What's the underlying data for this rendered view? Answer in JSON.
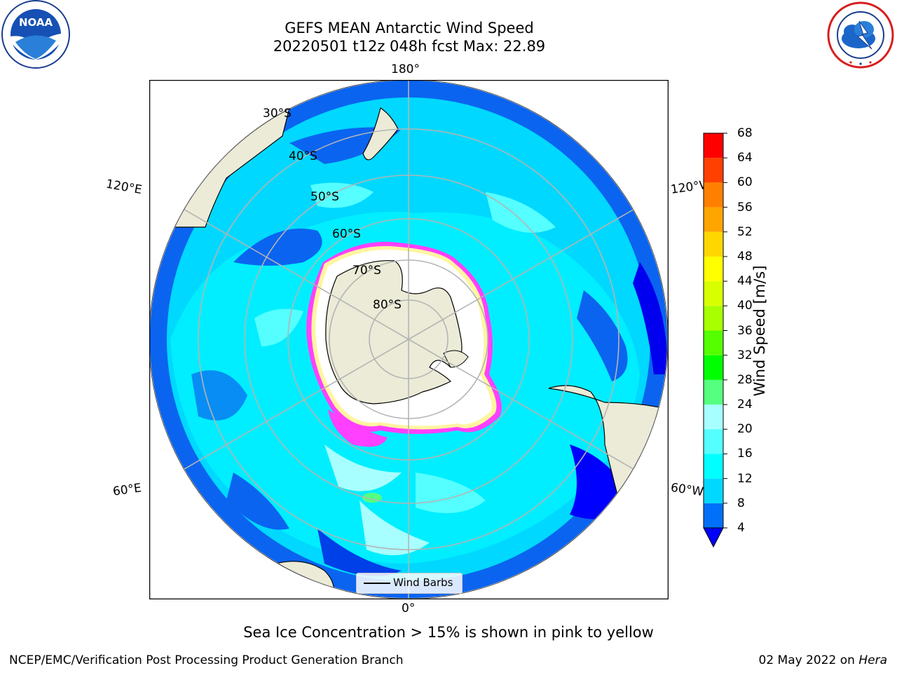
{
  "header": {
    "title": "GEFS MEAN Antarctic Wind Speed",
    "subtitle": "20220501 t12z 048h fcst   Max: 22.89"
  },
  "logos": {
    "left": {
      "icon": "noaa-logo",
      "text": "NOAA"
    },
    "right": {
      "icon": "national-weather-service-logo",
      "text": "NATIONAL WEATHER SERVICE"
    }
  },
  "map": {
    "projection": "south-polar-stereographic",
    "lon_labels": {
      "top": "180°",
      "bottom": "0°",
      "upper_left": "120°E",
      "lower_left": "60°E",
      "upper_right": "120°W",
      "lower_right": "60°W"
    },
    "lat_labels": [
      "30°S",
      "40°S",
      "50°S",
      "60°S",
      "70°S",
      "80°S"
    ],
    "legend_label": "Wind Barbs"
  },
  "colorbar": {
    "title": "Wind Speed [m/s]",
    "ticks": [
      "4",
      "8",
      "12",
      "16",
      "20",
      "24",
      "28",
      "32",
      "36",
      "40",
      "44",
      "48",
      "52",
      "56",
      "60",
      "64",
      "68"
    ],
    "colors": [
      "#0000ff",
      "#0070f8",
      "#00d8ff",
      "#00ffff",
      "#55ffff",
      "#a8ffff",
      "#55ff80",
      "#00ff00",
      "#55ff00",
      "#a8ff00",
      "#d8ff00",
      "#ffff00",
      "#ffd700",
      "#ffa500",
      "#ff8000",
      "#ff4000",
      "#ff0000"
    ],
    "extend": "min"
  },
  "colors": {
    "land": "#ebebd7",
    "ocean_deep": "#0050ff",
    "ocean_mid": "#00dfff",
    "ocean_light": "#a0ffff",
    "sea_ice_edge": "#ff40ff"
  },
  "note": "Sea Ice Concentration > 15% is shown in pink to yellow",
  "footer": {
    "left": "NCEP/EMC/Verification Post Processing Product Generation Branch",
    "date": "02 May 2022 on",
    "machine": "Hera"
  }
}
